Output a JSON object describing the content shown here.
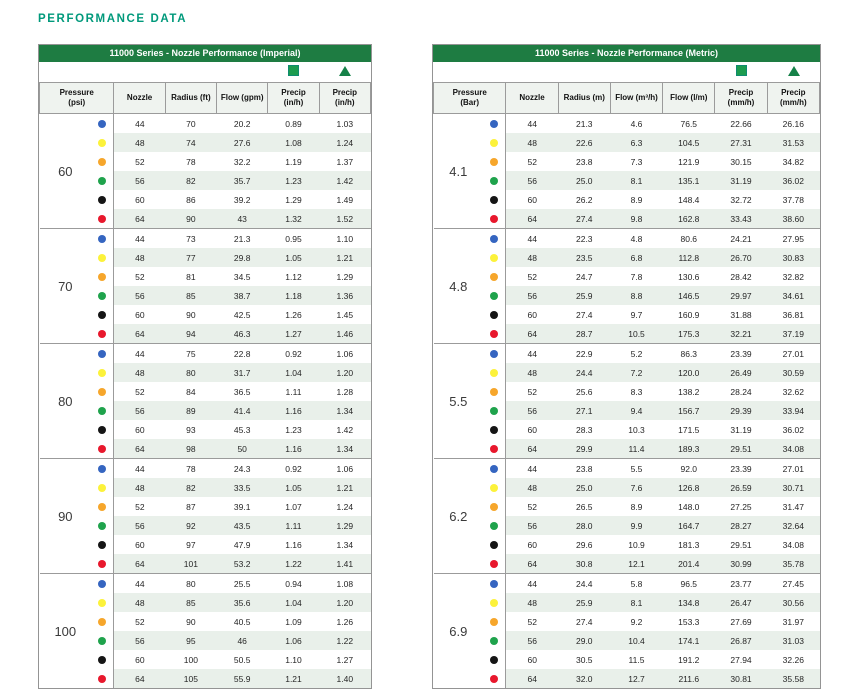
{
  "page_title": "PERFORMANCE DATA",
  "colors": {
    "title_teal": "#00997B",
    "header_bar_green": "#1E7C42",
    "legend_icon_green": "#1C9C4F",
    "row_stripe": "#E9F0EA",
    "header_row_bg": "#EFF3EF",
    "border_gray": "#9B9B9B"
  },
  "legend": {
    "icons": [
      "square-icon",
      "triangle-icon"
    ]
  },
  "dot_colors": {
    "44": "#3565C0",
    "48": "#FCF23B",
    "52": "#F6A62B",
    "56": "#1FA34C",
    "60": "#151515",
    "64": "#E8182D"
  },
  "tables": [
    {
      "title": "11000 Series - Nozzle Performance (Imperial)",
      "pressure_header": "Pressure\n(psi)",
      "columns": [
        "Nozzle",
        "Radius (ft)",
        "Flow (gpm)",
        "Precip\n(in/h)",
        "Precip\n(in/h)"
      ],
      "sections": [
        {
          "pressure": "60",
          "rows": [
            [
              "44",
              "70",
              "20.2",
              "0.89",
              "1.03"
            ],
            [
              "48",
              "74",
              "27.6",
              "1.08",
              "1.24"
            ],
            [
              "52",
              "78",
              "32.2",
              "1.19",
              "1.37"
            ],
            [
              "56",
              "82",
              "35.7",
              "1.23",
              "1.42"
            ],
            [
              "60",
              "86",
              "39.2",
              "1.29",
              "1.49"
            ],
            [
              "64",
              "90",
              "43",
              "1.32",
              "1.52"
            ]
          ]
        },
        {
          "pressure": "70",
          "rows": [
            [
              "44",
              "73",
              "21.3",
              "0.95",
              "1.10"
            ],
            [
              "48",
              "77",
              "29.8",
              "1.05",
              "1.21"
            ],
            [
              "52",
              "81",
              "34.5",
              "1.12",
              "1.29"
            ],
            [
              "56",
              "85",
              "38.7",
              "1.18",
              "1.36"
            ],
            [
              "60",
              "90",
              "42.5",
              "1.26",
              "1.45"
            ],
            [
              "64",
              "94",
              "46.3",
              "1.27",
              "1.46"
            ]
          ]
        },
        {
          "pressure": "80",
          "rows": [
            [
              "44",
              "75",
              "22.8",
              "0.92",
              "1.06"
            ],
            [
              "48",
              "80",
              "31.7",
              "1.04",
              "1.20"
            ],
            [
              "52",
              "84",
              "36.5",
              "1.11",
              "1.28"
            ],
            [
              "56",
              "89",
              "41.4",
              "1.16",
              "1.34"
            ],
            [
              "60",
              "93",
              "45.3",
              "1.23",
              "1.42"
            ],
            [
              "64",
              "98",
              "50",
              "1.16",
              "1.34"
            ]
          ]
        },
        {
          "pressure": "90",
          "rows": [
            [
              "44",
              "78",
              "24.3",
              "0.92",
              "1.06"
            ],
            [
              "48",
              "82",
              "33.5",
              "1.05",
              "1.21"
            ],
            [
              "52",
              "87",
              "39.1",
              "1.07",
              "1.24"
            ],
            [
              "56",
              "92",
              "43.5",
              "1.11",
              "1.29"
            ],
            [
              "60",
              "97",
              "47.9",
              "1.16",
              "1.34"
            ],
            [
              "64",
              "101",
              "53.2",
              "1.22",
              "1.41"
            ]
          ]
        },
        {
          "pressure": "100",
          "rows": [
            [
              "44",
              "80",
              "25.5",
              "0.94",
              "1.08"
            ],
            [
              "48",
              "85",
              "35.6",
              "1.04",
              "1.20"
            ],
            [
              "52",
              "90",
              "40.5",
              "1.09",
              "1.26"
            ],
            [
              "56",
              "95",
              "46",
              "1.06",
              "1.22"
            ],
            [
              "60",
              "100",
              "50.5",
              "1.10",
              "1.27"
            ],
            [
              "64",
              "105",
              "55.9",
              "1.21",
              "1.40"
            ]
          ]
        }
      ]
    },
    {
      "title": "11000 Series - Nozzle Performance (Metric)",
      "pressure_header": "Pressure\n(Bar)",
      "columns": [
        "Nozzle",
        "Radius (m)",
        "Flow (m³/h)",
        "Flow (l/m)",
        "Precip\n(mm/h)",
        "Precip\n(mm/h)"
      ],
      "sections": [
        {
          "pressure": "4.1",
          "rows": [
            [
              "44",
              "21.3",
              "4.6",
              "76.5",
              "22.66",
              "26.16"
            ],
            [
              "48",
              "22.6",
              "6.3",
              "104.5",
              "27.31",
              "31.53"
            ],
            [
              "52",
              "23.8",
              "7.3",
              "121.9",
              "30.15",
              "34.82"
            ],
            [
              "56",
              "25.0",
              "8.1",
              "135.1",
              "31.19",
              "36.02"
            ],
            [
              "60",
              "26.2",
              "8.9",
              "148.4",
              "32.72",
              "37.78"
            ],
            [
              "64",
              "27.4",
              "9.8",
              "162.8",
              "33.43",
              "38.60"
            ]
          ]
        },
        {
          "pressure": "4.8",
          "rows": [
            [
              "44",
              "22.3",
              "4.8",
              "80.6",
              "24.21",
              "27.95"
            ],
            [
              "48",
              "23.5",
              "6.8",
              "112.8",
              "26.70",
              "30.83"
            ],
            [
              "52",
              "24.7",
              "7.8",
              "130.6",
              "28.42",
              "32.82"
            ],
            [
              "56",
              "25.9",
              "8.8",
              "146.5",
              "29.97",
              "34.61"
            ],
            [
              "60",
              "27.4",
              "9.7",
              "160.9",
              "31.88",
              "36.81"
            ],
            [
              "64",
              "28.7",
              "10.5",
              "175.3",
              "32.21",
              "37.19"
            ]
          ]
        },
        {
          "pressure": "5.5",
          "rows": [
            [
              "44",
              "22.9",
              "5.2",
              "86.3",
              "23.39",
              "27.01"
            ],
            [
              "48",
              "24.4",
              "7.2",
              "120.0",
              "26.49",
              "30.59"
            ],
            [
              "52",
              "25.6",
              "8.3",
              "138.2",
              "28.24",
              "32.62"
            ],
            [
              "56",
              "27.1",
              "9.4",
              "156.7",
              "29.39",
              "33.94"
            ],
            [
              "60",
              "28.3",
              "10.3",
              "171.5",
              "31.19",
              "36.02"
            ],
            [
              "64",
              "29.9",
              "11.4",
              "189.3",
              "29.51",
              "34.08"
            ]
          ]
        },
        {
          "pressure": "6.2",
          "rows": [
            [
              "44",
              "23.8",
              "5.5",
              "92.0",
              "23.39",
              "27.01"
            ],
            [
              "48",
              "25.0",
              "7.6",
              "126.8",
              "26.59",
              "30.71"
            ],
            [
              "52",
              "26.5",
              "8.9",
              "148.0",
              "27.25",
              "31.47"
            ],
            [
              "56",
              "28.0",
              "9.9",
              "164.7",
              "28.27",
              "32.64"
            ],
            [
              "60",
              "29.6",
              "10.9",
              "181.3",
              "29.51",
              "34.08"
            ],
            [
              "64",
              "30.8",
              "12.1",
              "201.4",
              "30.99",
              "35.78"
            ]
          ]
        },
        {
          "pressure": "6.9",
          "rows": [
            [
              "44",
              "24.4",
              "5.8",
              "96.5",
              "23.77",
              "27.45"
            ],
            [
              "48",
              "25.9",
              "8.1",
              "134.8",
              "26.47",
              "30.56"
            ],
            [
              "52",
              "27.4",
              "9.2",
              "153.3",
              "27.69",
              "31.97"
            ],
            [
              "56",
              "29.0",
              "10.4",
              "174.1",
              "26.87",
              "31.03"
            ],
            [
              "60",
              "30.5",
              "11.5",
              "191.2",
              "27.94",
              "32.26"
            ],
            [
              "64",
              "32.0",
              "12.7",
              "211.6",
              "30.81",
              "35.58"
            ]
          ]
        }
      ]
    }
  ]
}
